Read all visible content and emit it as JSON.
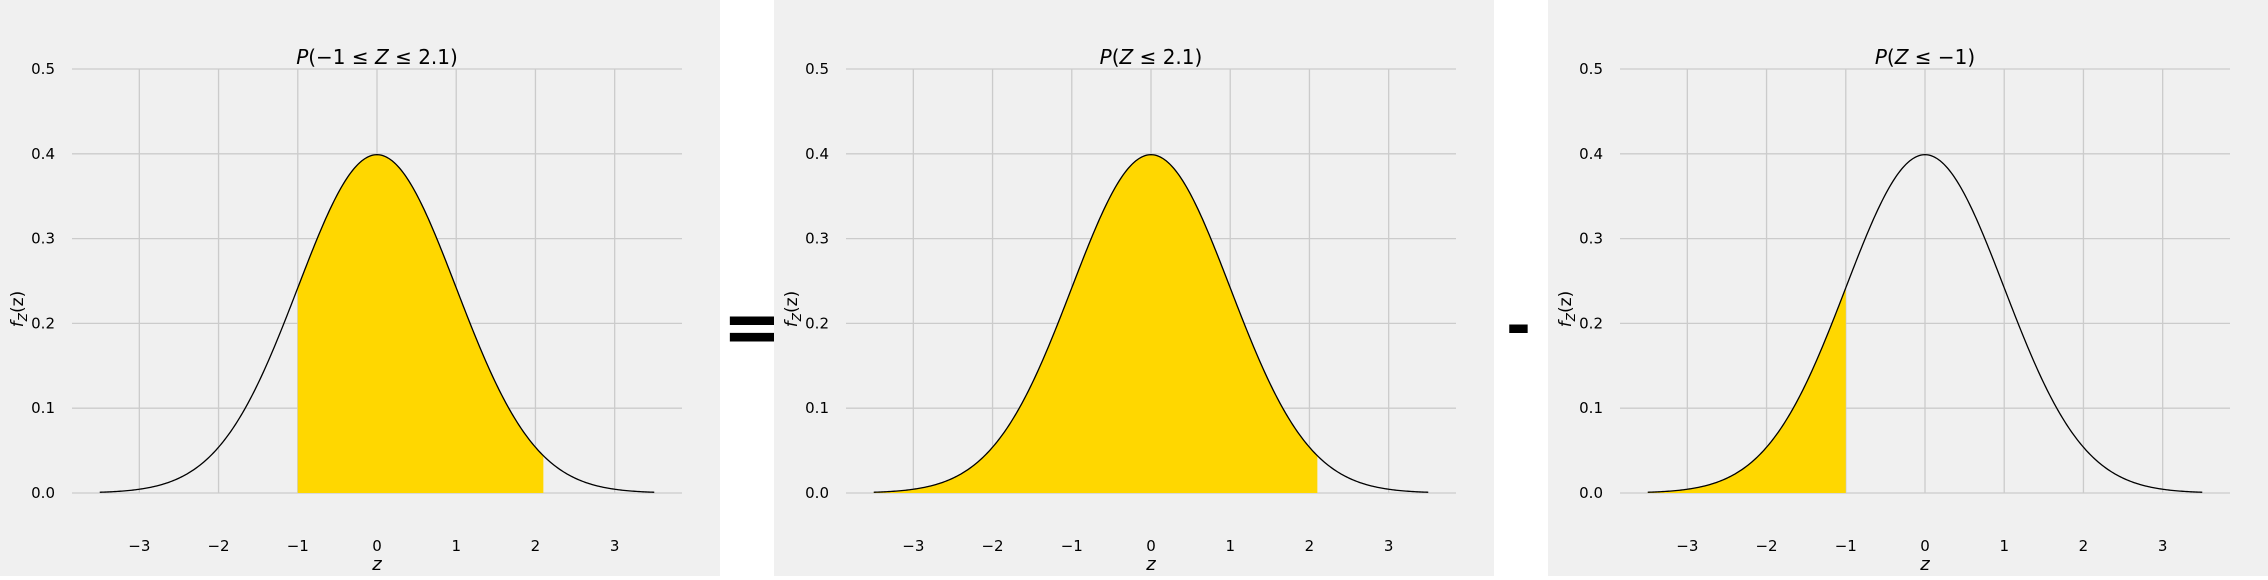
{
  "operators": {
    "equals": "=",
    "minus": "-"
  },
  "colors": {
    "panel_bg": "#f0f0f0",
    "grid": "#cbcbcb",
    "fill": "#FFD700",
    "curve": "#000000"
  },
  "chart_data": [
    {
      "type": "area",
      "title": "P(−1 ≤ Z ≤ 2.1)",
      "title_parts": [
        "P",
        "(−1 ≤ ",
        "Z",
        " ≤ 2.1)"
      ],
      "xlabel": "z",
      "ylabel": "f_Z(z)",
      "ylabel_parts": [
        "f",
        "Z",
        "(z)"
      ],
      "curve": "standard-normal-pdf",
      "x_range": [
        -3.5,
        3.5
      ],
      "xlim": [
        -3.85,
        3.85
      ],
      "ylim": [
        0,
        0.5
      ],
      "xticks": [
        -3,
        -2,
        -1,
        0,
        1,
        2,
        3
      ],
      "xtick_labels": [
        "−3",
        "−2",
        "−1",
        "0",
        "1",
        "2",
        "3"
      ],
      "yticks": [
        0.0,
        0.1,
        0.2,
        0.3,
        0.4,
        0.5
      ],
      "ytick_labels": [
        "0.0",
        "0.1",
        "0.2",
        "0.3",
        "0.4",
        "0.5"
      ],
      "shaded_interval": [
        -1,
        2.1
      ],
      "grid": true
    },
    {
      "type": "area",
      "title": "P(Z ≤ 2.1)",
      "title_parts": [
        "P",
        "(",
        "Z",
        " ≤ 2.1)"
      ],
      "xlabel": "z",
      "ylabel": "f_Z(z)",
      "ylabel_parts": [
        "f",
        "Z",
        "(z)"
      ],
      "curve": "standard-normal-pdf",
      "x_range": [
        -3.5,
        3.5
      ],
      "xlim": [
        -3.85,
        3.85
      ],
      "ylim": [
        0,
        0.5
      ],
      "xticks": [
        -3,
        -2,
        -1,
        0,
        1,
        2,
        3
      ],
      "xtick_labels": [
        "−3",
        "−2",
        "−1",
        "0",
        "1",
        "2",
        "3"
      ],
      "yticks": [
        0.0,
        0.1,
        0.2,
        0.3,
        0.4,
        0.5
      ],
      "ytick_labels": [
        "0.0",
        "0.1",
        "0.2",
        "0.3",
        "0.4",
        "0.5"
      ],
      "shaded_interval": [
        -3.5,
        2.1
      ],
      "grid": true
    },
    {
      "type": "area",
      "title": "P(Z ≤ −1)",
      "title_parts": [
        "P",
        "(",
        "Z",
        " ≤ −1)"
      ],
      "xlabel": "z",
      "ylabel": "f_Z(z)",
      "ylabel_parts": [
        "f",
        "Z",
        "(z)"
      ],
      "curve": "standard-normal-pdf",
      "x_range": [
        -3.5,
        3.5
      ],
      "xlim": [
        -3.85,
        3.85
      ],
      "ylim": [
        0,
        0.5
      ],
      "xticks": [
        -3,
        -2,
        -1,
        0,
        1,
        2,
        3
      ],
      "xtick_labels": [
        "−3",
        "−2",
        "−1",
        "0",
        "1",
        "2",
        "3"
      ],
      "yticks": [
        0.0,
        0.1,
        0.2,
        0.3,
        0.4,
        0.5
      ],
      "ytick_labels": [
        "0.0",
        "0.1",
        "0.2",
        "0.3",
        "0.4",
        "0.5"
      ],
      "shaded_interval": [
        -3.5,
        -1
      ],
      "grid": true
    }
  ]
}
